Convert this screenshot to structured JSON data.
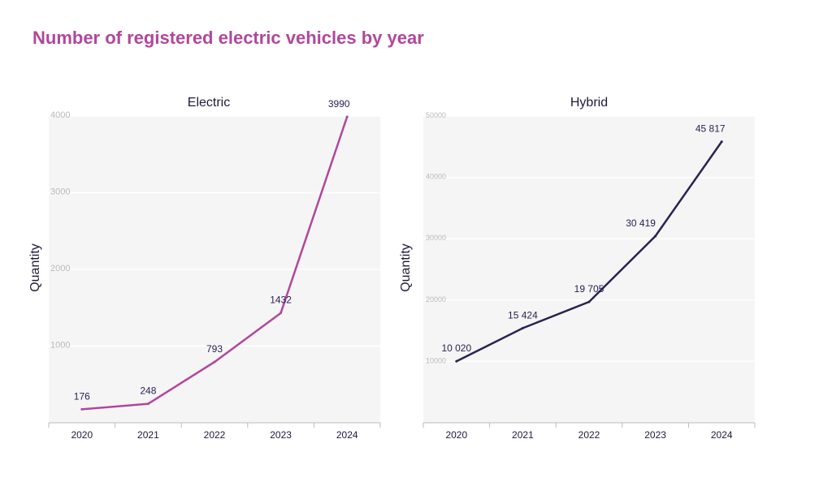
{
  "title": "Number of registered electric vehicles by year",
  "chart_data": [
    {
      "type": "line",
      "title": "Electric",
      "ylabel": "Quantity",
      "xlabel": "",
      "categories": [
        "2020",
        "2021",
        "2022",
        "2023",
        "2024"
      ],
      "values": [
        176,
        248,
        793,
        1432,
        3990
      ],
      "value_labels": [
        "176",
        "248",
        "793",
        "1432",
        "3990"
      ],
      "yticks": [
        "1000",
        "2000",
        "3000",
        "4000"
      ],
      "ytick_values": [
        1000,
        2000,
        3000,
        4000
      ],
      "ylim": [
        0,
        4000
      ],
      "grid": true,
      "color": "#b0479c"
    },
    {
      "type": "line",
      "title": "Hybrid",
      "ylabel": "Quantity",
      "xlabel": "",
      "categories": [
        "2020",
        "2021",
        "2022",
        "2023",
        "2024"
      ],
      "values": [
        10020,
        15424,
        19705,
        30419,
        45817
      ],
      "value_labels": [
        "10 020",
        "15 424",
        "19 705",
        "30 419",
        "45 817"
      ],
      "yticks": [
        "10000",
        "20000",
        "30000",
        "40000",
        "50000"
      ],
      "ytick_values": [
        10000,
        20000,
        30000,
        40000,
        50000
      ],
      "ylim": [
        0,
        50000
      ],
      "grid": true,
      "color": "#2b2152"
    }
  ]
}
